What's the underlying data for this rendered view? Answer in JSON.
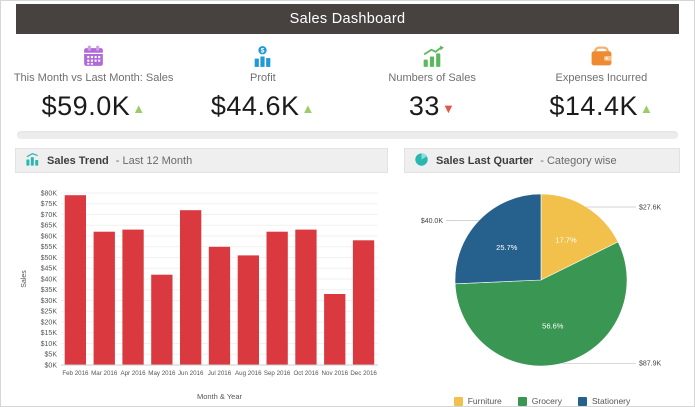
{
  "header": {
    "title": "Sales Dashboard"
  },
  "kpis": [
    {
      "icon": "calendar-icon",
      "label": "This Month vs Last Month: Sales",
      "value": "$59.0K",
      "trend": "up"
    },
    {
      "icon": "profit-bars-coin-icon",
      "label": "Profit",
      "value": "$44.6K",
      "trend": "up"
    },
    {
      "icon": "sales-growth-icon",
      "label": "Numbers of Sales",
      "value": "33",
      "trend": "down"
    },
    {
      "icon": "wallet-icon",
      "label": "Expenses Incurred",
      "value": "$14.4K",
      "trend": "up"
    }
  ],
  "panels": {
    "sales_trend": {
      "title": "Sales Trend",
      "subtitle": "- Last 12 Month"
    },
    "sales_quarter": {
      "title": "Sales Last Quarter",
      "subtitle": "- Category wise"
    }
  },
  "colors": {
    "header_bg": "#474240",
    "up_trend": "#9ccc65",
    "down_trend": "#e2574c",
    "bar": "#d9393f",
    "furniture": "#f2c14b",
    "grocery": "#3a9653",
    "stationery": "#26618e",
    "accent_teal": "#2ab7b0"
  },
  "chart_data": [
    {
      "type": "bar",
      "title": "Sales Trend - Last 12 Month",
      "categories": [
        "Feb 2016",
        "Mar 2016",
        "Apr 2016",
        "May 2016",
        "Jun 2016",
        "Jul 2016",
        "Aug 2016",
        "Sep 2016",
        "Oct 2016",
        "Nov 2016",
        "Dec 2016"
      ],
      "values": [
        79000,
        62000,
        63000,
        42000,
        72000,
        55000,
        51000,
        62000,
        63000,
        33000,
        58000
      ],
      "xlabel": "Month & Year",
      "ylabel": "Sales",
      "ylim": [
        0,
        80000
      ],
      "ytick_step": 5000,
      "grid": true,
      "legend_position": "none",
      "bar_color": "#d9393f"
    },
    {
      "type": "pie",
      "title": "Sales Last Quarter - Category wise",
      "slices": [
        {
          "label": "Furniture",
          "pct": 17.7,
          "amount": "$27.6K",
          "color": "#f2c14b"
        },
        {
          "label": "Grocery",
          "pct": 56.6,
          "amount": "$87.9K",
          "color": "#3a9653"
        },
        {
          "label": "Stationery",
          "pct": 25.7,
          "amount": "$40.0K",
          "color": "#26618e"
        }
      ],
      "legend_position": "bottom"
    }
  ]
}
